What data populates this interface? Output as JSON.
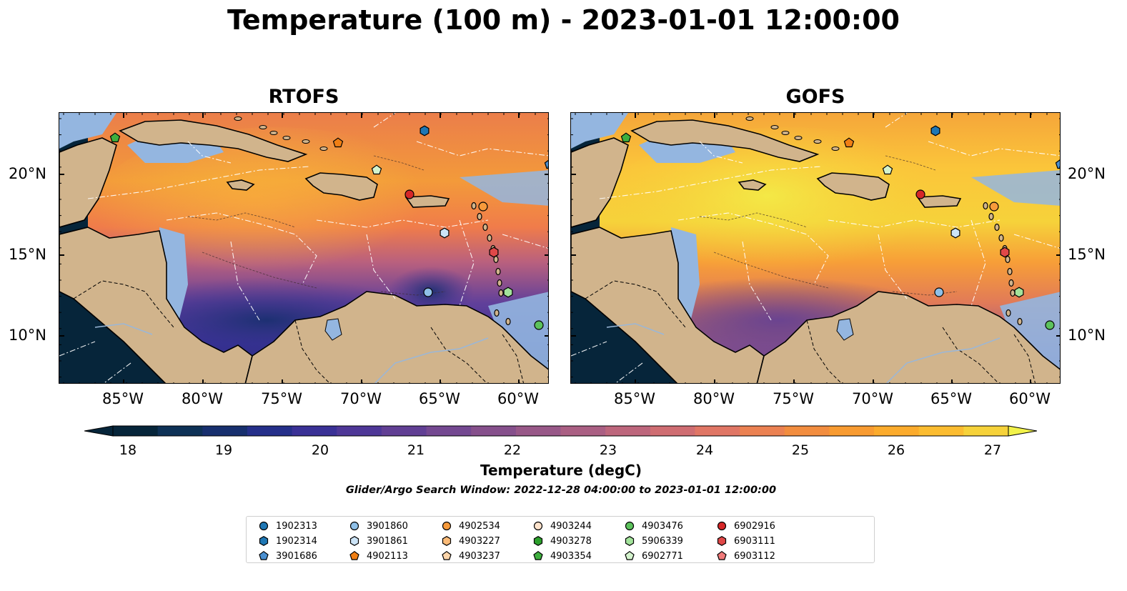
{
  "title": "Temperature (100 m) - 2023-01-01 12:00:00",
  "panels": [
    {
      "title": "RTOFS"
    },
    {
      "title": "GOFS"
    }
  ],
  "axes": {
    "lon_labels": [
      "85°W",
      "80°W",
      "75°W",
      "70°W",
      "65°W",
      "60°W"
    ],
    "lat_labels": [
      "20°N",
      "15°N",
      "10°N"
    ]
  },
  "colorbar": {
    "ticks": [
      "18",
      "19",
      "20",
      "21",
      "22",
      "23",
      "24",
      "25",
      "26",
      "27"
    ],
    "label": "Temperature (degC)",
    "colors": [
      "#06253a",
      "#0e3156",
      "#172f6e",
      "#252f8a",
      "#3a3196",
      "#4e3797",
      "#613f94",
      "#744891",
      "#86508c",
      "#985888",
      "#aa5f83",
      "#bd667c",
      "#cf6d72",
      "#e07665",
      "#eb8152",
      "#f28d3f",
      "#f89b31",
      "#fbab2c",
      "#fbbc30",
      "#f6d23a"
    ],
    "min_color": "#06253a",
    "max_color": "#f2f24a"
  },
  "search_window": "Glider/Argo Search Window: 2022-12-28 04:00:00 to 2023-01-01 12:00:00",
  "legend": [
    {
      "label": "1902313",
      "marker": "circle",
      "color": "#1f77b4"
    },
    {
      "label": "1902314",
      "marker": "hexagon",
      "color": "#1f77b4"
    },
    {
      "label": "3901686",
      "marker": "pentagon",
      "color": "#4a8fd0"
    },
    {
      "label": "3901860",
      "marker": "circle",
      "color": "#8fc0e8"
    },
    {
      "label": "3901861",
      "marker": "hexagon",
      "color": "#cce4f7"
    },
    {
      "label": "4902113",
      "marker": "pentagon",
      "color": "#f07f14"
    },
    {
      "label": "4902534",
      "marker": "circle",
      "color": "#f79a3b"
    },
    {
      "label": "4903227",
      "marker": "hexagon",
      "color": "#fbbb78"
    },
    {
      "label": "4903237",
      "marker": "pentagon",
      "color": "#fcd5aa"
    },
    {
      "label": "4903244",
      "marker": "circle",
      "color": "#fde3cc"
    },
    {
      "label": "4903278",
      "marker": "hexagon",
      "color": "#2ca02c"
    },
    {
      "label": "4903354",
      "marker": "pentagon",
      "color": "#3eae3e"
    },
    {
      "label": "4903476",
      "marker": "circle",
      "color": "#5cc25c"
    },
    {
      "label": "5906339",
      "marker": "hexagon",
      "color": "#a3e39b"
    },
    {
      "label": "6902771",
      "marker": "pentagon",
      "color": "#d4f3cd"
    },
    {
      "label": "6902916",
      "marker": "circle",
      "color": "#d62728"
    },
    {
      "label": "6903111",
      "marker": "hexagon",
      "color": "#e04848"
    },
    {
      "label": "6903112",
      "marker": "pentagon",
      "color": "#f07a7a"
    }
  ],
  "colors": {
    "land": "#d1b48c",
    "shallow": "#94b6e0",
    "pacific": "#06253a"
  }
}
